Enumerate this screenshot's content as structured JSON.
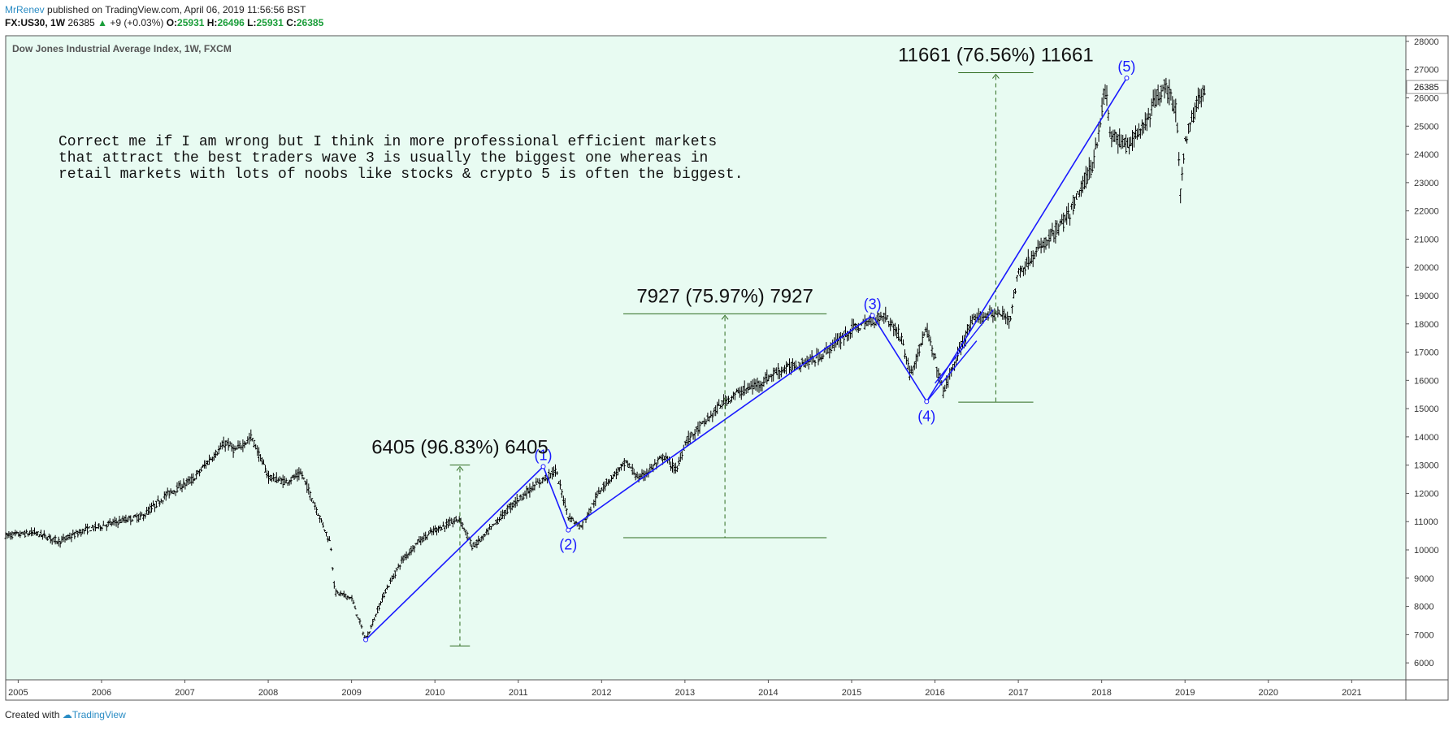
{
  "header": {
    "author": "MrRenev",
    "published": "published on TradingView.com, April 06, 2019 11:56:56 BST",
    "symbol": "FX:US30, 1W",
    "last": "26385",
    "change": "+9 (+0.03%)",
    "open_label": "O:",
    "open": "25931",
    "high_label": "H:",
    "high": "26496",
    "low_label": "L:",
    "low": "25931",
    "close_label": "C:",
    "close": "26385"
  },
  "footer": {
    "created_with": "Created with",
    "brand": "TradingView"
  },
  "colors": {
    "background": "#e8fbf2",
    "line": "#1a1aff",
    "annotation": "#2e6b1f",
    "candle": "#000000",
    "price_badge_bg": "#ffffff"
  },
  "chart_data": {
    "type": "line",
    "title": "Dow Jones Industrial Average Index, 1W, FXCM",
    "ylim": [
      5400,
      28200
    ],
    "xlim": [
      2004.85,
      2021.65
    ],
    "y_ticks": [
      6000,
      7000,
      8000,
      9000,
      10000,
      11000,
      12000,
      13000,
      14000,
      15000,
      16000,
      17000,
      18000,
      19000,
      20000,
      21000,
      22000,
      23000,
      24000,
      25000,
      26000,
      27000,
      28000
    ],
    "x_ticks": [
      2005,
      2006,
      2007,
      2008,
      2009,
      2010,
      2011,
      2012,
      2013,
      2014,
      2015,
      2016,
      2017,
      2018,
      2019,
      2020,
      2021
    ],
    "last_price": 26385,
    "price_series": {
      "name": "FX:US30",
      "x": [
        2004.85,
        2005.2,
        2005.5,
        2005.8,
        2006.2,
        2006.5,
        2006.8,
        2007.1,
        2007.3,
        2007.5,
        2007.6,
        2007.8,
        2008.0,
        2008.2,
        2008.4,
        2008.6,
        2008.75,
        2008.8,
        2009.0,
        2009.17,
        2009.4,
        2009.6,
        2009.8,
        2010.0,
        2010.3,
        2010.45,
        2010.6,
        2010.8,
        2011.0,
        2011.3,
        2011.45,
        2011.6,
        2011.75,
        2012.0,
        2012.3,
        2012.45,
        2012.75,
        2012.9,
        2013.0,
        2013.3,
        2013.45,
        2013.6,
        2013.9,
        2014.1,
        2014.3,
        2014.6,
        2014.8,
        2015.0,
        2015.4,
        2015.6,
        2015.7,
        2015.9,
        2016.1,
        2016.4,
        2016.5,
        2016.7,
        2016.9,
        2017.0,
        2017.3,
        2017.6,
        2017.9,
        2018.05,
        2018.1,
        2018.3,
        2018.5,
        2018.75,
        2018.9,
        2018.95,
        2019.0,
        2019.15,
        2019.25
      ],
      "values": [
        10500,
        10600,
        10300,
        10700,
        11000,
        11200,
        12000,
        12500,
        13200,
        13800,
        13500,
        14000,
        12600,
        12400,
        12700,
        11300,
        10200,
        8500,
        8300,
        6800,
        8500,
        9600,
        10300,
        10700,
        11100,
        10100,
        10500,
        11200,
        11800,
        12500,
        12800,
        11200,
        10800,
        12200,
        13100,
        12500,
        13300,
        12800,
        13800,
        14700,
        15200,
        15500,
        15900,
        16300,
        16500,
        16800,
        17300,
        17800,
        18300,
        17500,
        16200,
        17800,
        15600,
        17800,
        18200,
        18400,
        18200,
        19800,
        20800,
        21800,
        23700,
        26400,
        24700,
        24300,
        25000,
        26500,
        25500,
        22500,
        24500,
        25800,
        26385
      ]
    },
    "wave_points": [
      {
        "label": "",
        "x": 2009.17,
        "y": 6820
      },
      {
        "label": "(1)",
        "x": 2011.3,
        "y": 12950
      },
      {
        "label": "(2)",
        "x": 2011.6,
        "y": 10700
      },
      {
        "label": "(3)",
        "x": 2015.25,
        "y": 18300
      },
      {
        "label": "(4)",
        "x": 2015.9,
        "y": 15250
      },
      {
        "label": "(5)",
        "x": 2018.3,
        "y": 26700
      }
    ],
    "extra_segments": [
      {
        "x1": 2015.9,
        "y1": 15250,
        "x2": 2016.5,
        "y2": 17400
      },
      {
        "x1": 2016.0,
        "y1": 15900,
        "x2": 2016.7,
        "y2": 18500
      }
    ],
    "measurements": [
      {
        "text": "6405 (96.83%) 6405",
        "x": 2010.3,
        "y_from": 6600,
        "y_to": 13005,
        "half_width": 0.12
      },
      {
        "text": "7927 (75.97%) 7927",
        "x": 2013.48,
        "y_from": 10430,
        "y_to": 18357,
        "half_width": 1.22
      },
      {
        "text": "11661 (76.56%) 11661",
        "x": 2016.73,
        "y_from": 15230,
        "y_to": 26891,
        "half_width": 0.45
      }
    ],
    "note": [
      "Correct me if I am wrong but I think in more professional efficient markets",
      "that attract the best traders wave 3 is usually the biggest one whereas in",
      "retail markets with lots of noobs like stocks & crypto 5 is often the biggest."
    ]
  }
}
